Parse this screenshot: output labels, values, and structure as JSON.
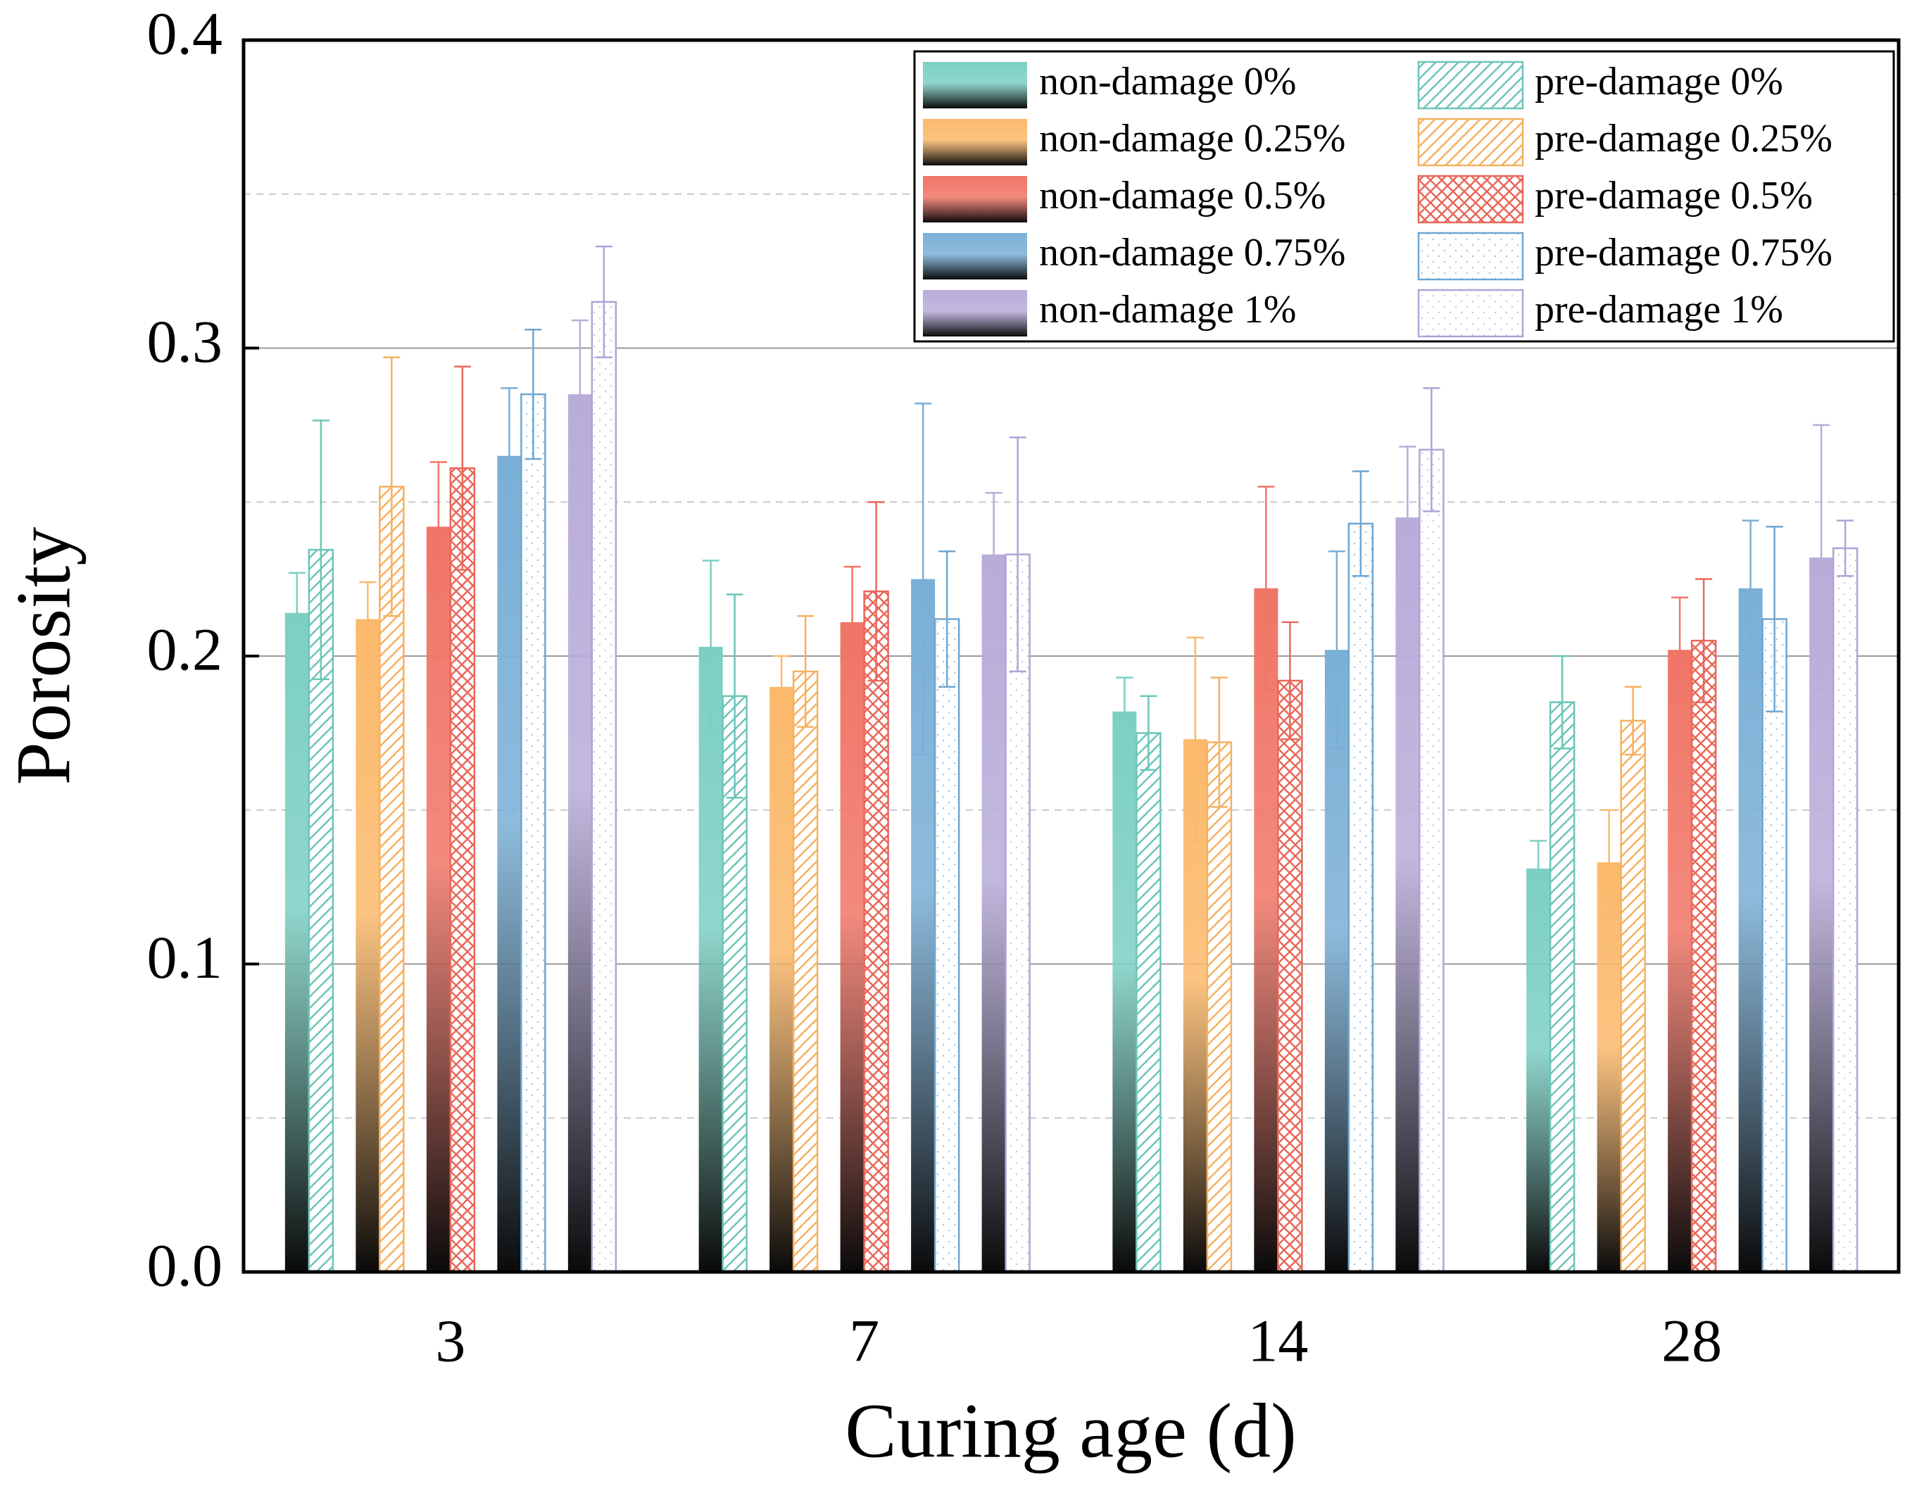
{
  "chart_data": {
    "type": "bar",
    "x_label": "Curing age (d)",
    "y_label": "Porosity",
    "categories": [
      "3",
      "7",
      "14",
      "28"
    ],
    "ylim": [
      0,
      0.4
    ],
    "yticks": [
      {
        "value": 0,
        "label": "0.0"
      },
      0.1,
      0.2,
      0.3,
      0.4
    ],
    "grid": true,
    "minor_grid": true,
    "legend": "upper right",
    "series": [
      {
        "name": "non-damage 0%",
        "color": "#7ccfc3",
        "style": "gradient",
        "values": [
          0.214,
          0.203,
          0.182,
          0.131
        ],
        "errors": [
          0.013,
          0.028,
          0.011,
          0.009
        ]
      },
      {
        "name": "pre-damage 0%",
        "color": "#6cc5b8",
        "style": "diagonal",
        "values": [
          0.2345,
          0.187,
          0.175,
          0.185
        ],
        "errors": [
          0.042,
          0.033,
          0.012,
          0.015
        ]
      },
      {
        "name": "non-damage 0.25%",
        "color": "#fbb96b",
        "style": "gradient",
        "values": [
          0.212,
          0.19,
          0.173,
          0.133
        ],
        "errors": [
          0.012,
          0.01,
          0.033,
          0.017
        ]
      },
      {
        "name": "pre-damage 0.25%",
        "color": "#f5b160",
        "style": "diagonal",
        "values": [
          0.255,
          0.195,
          0.172,
          0.179
        ],
        "errors": [
          0.042,
          0.018,
          0.021,
          0.011
        ]
      },
      {
        "name": "non-damage 0.5%",
        "color": "#f07566",
        "style": "gradient",
        "values": [
          0.242,
          0.211,
          0.222,
          0.202
        ],
        "errors": [
          0.021,
          0.018,
          0.033,
          0.017
        ]
      },
      {
        "name": "pre-damage 0.5%",
        "color": "#e8685a",
        "style": "crosshatch",
        "values": [
          0.261,
          0.221,
          0.192,
          0.205
        ],
        "errors": [
          0.033,
          0.029,
          0.019,
          0.02
        ]
      },
      {
        "name": "non-damage 0.75%",
        "color": "#7aafd6",
        "style": "gradient",
        "values": [
          0.265,
          0.225,
          0.202,
          0.222
        ],
        "errors": [
          0.022,
          0.057,
          0.032,
          0.022
        ]
      },
      {
        "name": "pre-damage 0.75%",
        "color": "#6fa6d0",
        "style": "dots",
        "values": [
          0.285,
          0.212,
          0.243,
          0.212
        ],
        "errors": [
          0.021,
          0.022,
          0.017,
          0.03
        ]
      },
      {
        "name": "non-damage 1%",
        "color": "#b8acd9",
        "style": "gradient",
        "values": [
          0.285,
          0.233,
          0.245,
          0.232
        ],
        "errors": [
          0.024,
          0.02,
          0.023,
          0.043
        ]
      },
      {
        "name": "pre-damage 1%",
        "color": "#b0a4d6",
        "style": "dots",
        "values": [
          0.315,
          0.233,
          0.267,
          0.235
        ],
        "errors": [
          0.018,
          0.038,
          0.02,
          0.009
        ]
      }
    ]
  }
}
